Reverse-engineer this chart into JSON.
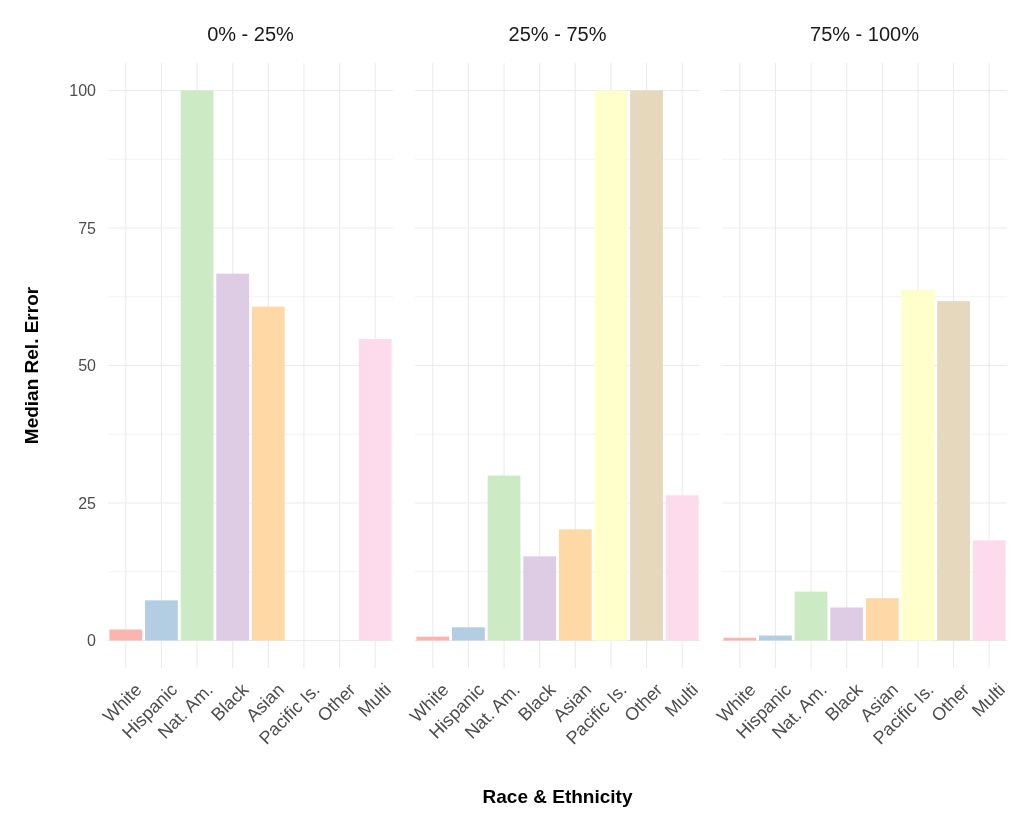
{
  "chart_data": [
    {
      "type": "bar",
      "title": "0% - 25%",
      "ylabel": "Median Rel. Error",
      "categories": [
        "White",
        "Hispanic",
        "Nat. Am.",
        "Black",
        "Asian",
        "Pacific Is.",
        "Other",
        "Multi"
      ],
      "values": [
        2.0,
        7.3,
        100,
        66.7,
        60.7,
        null,
        null,
        54.8
      ],
      "colors": [
        "#fbb4ae",
        "#b3cde3",
        "#ccebc5",
        "#decbe4",
        "#fed9a6",
        null,
        null,
        "#fddaec"
      ],
      "ylim": [
        -5,
        105
      ],
      "yticks": [
        0,
        {
          "value": 12.5,
          "label": null
        },
        25,
        {
          "value": 37.5,
          "label": null
        },
        50,
        {
          "value": 62.5,
          "label": null
        },
        75,
        {
          "value": 87.5,
          "label": null
        },
        100
      ],
      "grid": true
    },
    {
      "type": "bar",
      "title": "25% - 75%",
      "xlabel": "Race & Ethnicity",
      "categories": [
        "White",
        "Hispanic",
        "Nat. Am.",
        "Black",
        "Asian",
        "Pacific Is.",
        "Other",
        "Multi"
      ],
      "values": [
        0.7,
        2.4,
        30,
        15.3,
        20.2,
        100,
        100,
        26.4
      ],
      "colors": [
        "#fbb4ae",
        "#b3cde3",
        "#ccebc5",
        "#decbe4",
        "#fed9a6",
        "#ffffcc",
        "#e5d8bd",
        "#fddaec"
      ],
      "ylim": [
        -5,
        105
      ],
      "yticks": [
        0,
        {
          "value": 12.5,
          "label": null
        },
        25,
        {
          "value": 37.5,
          "label": null
        },
        50,
        {
          "value": 62.5,
          "label": null
        },
        75,
        {
          "value": 87.5,
          "label": null
        },
        100
      ],
      "grid": true,
      "tick_labels": "x"
    },
    {
      "type": "bar",
      "title": "75% - 100%",
      "categories": [
        "White",
        "Hispanic",
        "Nat. Am.",
        "Black",
        "Asian",
        "Pacific Is.",
        "Other",
        "Multi"
      ],
      "values": [
        0.5,
        0.9,
        8.9,
        6.0,
        7.7,
        63.8,
        61.7,
        18.2
      ],
      "colors": [
        "#fbb4ae",
        "#b3cde3",
        "#ccebc5",
        "#decbe4",
        "#fed9a6",
        "#ffffcc",
        "#e5d8bd",
        "#fddaec"
      ],
      "ylim": [
        -5,
        105
      ],
      "yticks": [
        0,
        {
          "value": 12.5,
          "label": null
        },
        25,
        {
          "value": 37.5,
          "label": null
        },
        50,
        {
          "value": 62.5,
          "label": null
        },
        75,
        {
          "value": 87.5,
          "label": null
        },
        100
      ],
      "grid": true,
      "tick_labels": "x"
    }
  ]
}
